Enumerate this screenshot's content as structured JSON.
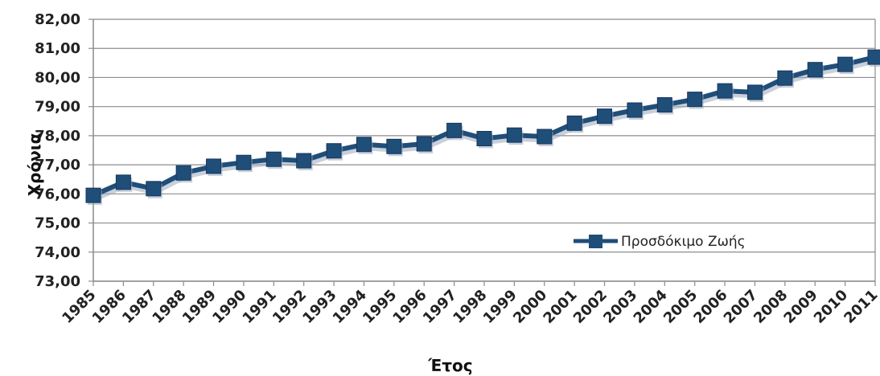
{
  "chart_data": {
    "type": "line",
    "xlabel": "Έτος",
    "ylabel": "Χρόνια",
    "ylim": [
      73,
      82
    ],
    "yticks": [
      "73,00",
      "74,00",
      "75,00",
      "76,00",
      "77,00",
      "78,00",
      "79,00",
      "80,00",
      "81,00",
      "82,00"
    ],
    "grid": true,
    "legend_position": "bottom-right",
    "categories": [
      "1985",
      "1986",
      "1987",
      "1988",
      "1989",
      "1990",
      "1991",
      "1992",
      "1993",
      "1994",
      "1995",
      "1996",
      "1997",
      "1998",
      "1999",
      "2000",
      "2001",
      "2002",
      "2003",
      "2004",
      "2005",
      "2006",
      "2007",
      "2008",
      "2009",
      "2010",
      "2011"
    ],
    "series": [
      {
        "name": "Προσδόκιμο Ζωής",
        "color": "#1f4e79",
        "values": [
          75.95,
          76.4,
          76.18,
          76.72,
          76.95,
          77.08,
          77.19,
          77.14,
          77.48,
          77.7,
          77.63,
          77.72,
          78.18,
          77.9,
          78.02,
          77.97,
          78.43,
          78.67,
          78.88,
          79.06,
          79.25,
          79.54,
          79.49,
          79.98,
          80.27,
          80.45,
          80.7
        ]
      }
    ]
  }
}
